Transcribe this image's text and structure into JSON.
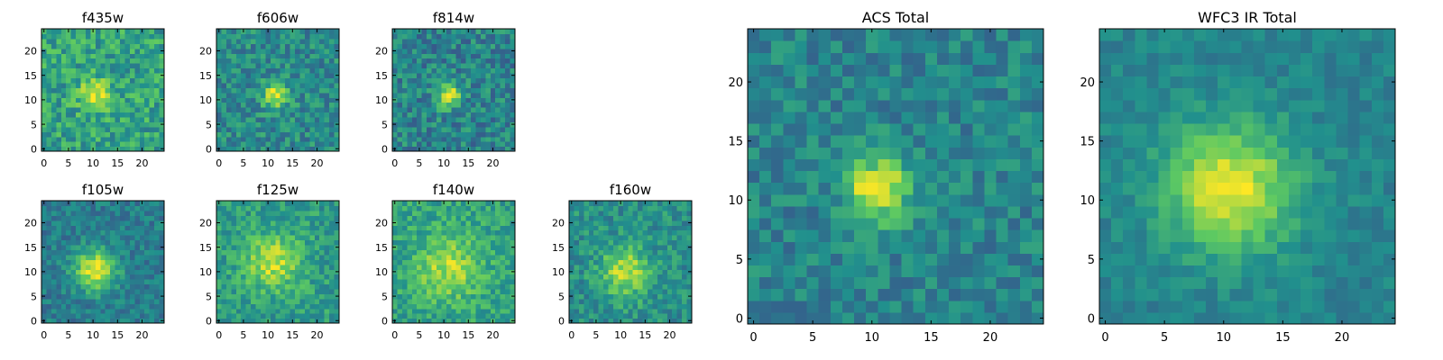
{
  "colormap": {
    "name": "viridis",
    "stops": [
      "#440154",
      "#3b528b",
      "#21908d",
      "#5dc962",
      "#fde725"
    ]
  },
  "chart_data": [
    {
      "type": "heatmap",
      "title": "f435w",
      "grid": false,
      "xlim": [
        0,
        24
      ],
      "ylim": [
        0,
        24
      ],
      "xticks": [
        "0",
        "5",
        "10",
        "15",
        "20"
      ],
      "yticks": [
        "0",
        "5",
        "10",
        "15",
        "20"
      ],
      "center": [
        10.5,
        11
      ],
      "sigma": 2.2,
      "base": 0.58,
      "amp": 0.38,
      "noise": 0.18,
      "seed": 11
    },
    {
      "type": "heatmap",
      "title": "f606w",
      "grid": false,
      "xlim": [
        0,
        24
      ],
      "ylim": [
        0,
        24
      ],
      "xticks": [
        "0",
        "5",
        "10",
        "15",
        "20"
      ],
      "yticks": [
        "0",
        "5",
        "10",
        "15",
        "20"
      ],
      "center": [
        11.5,
        11
      ],
      "sigma": 1.8,
      "base": 0.48,
      "amp": 0.5,
      "noise": 0.16,
      "seed": 23
    },
    {
      "type": "heatmap",
      "title": "f814w",
      "grid": false,
      "xlim": [
        0,
        24
      ],
      "ylim": [
        0,
        24
      ],
      "xticks": [
        "0",
        "5",
        "10",
        "15",
        "20"
      ],
      "yticks": [
        "0",
        "5",
        "10",
        "15",
        "20"
      ],
      "center": [
        11,
        11
      ],
      "sigma": 1.7,
      "base": 0.45,
      "amp": 0.52,
      "noise": 0.17,
      "seed": 37
    },
    {
      "type": "heatmap",
      "title": "f105w",
      "grid": false,
      "xlim": [
        0,
        24
      ],
      "ylim": [
        0,
        24
      ],
      "xticks": [
        "0",
        "5",
        "10",
        "15",
        "20"
      ],
      "yticks": [
        "0",
        "5",
        "10",
        "15",
        "20"
      ],
      "center": [
        10.5,
        10.5
      ],
      "sigma": 3.0,
      "base": 0.42,
      "amp": 0.55,
      "noise": 0.12,
      "seed": 41
    },
    {
      "type": "heatmap",
      "title": "f125w",
      "grid": false,
      "xlim": [
        0,
        24
      ],
      "ylim": [
        0,
        24
      ],
      "xticks": [
        "0",
        "5",
        "10",
        "15",
        "20"
      ],
      "yticks": [
        "0",
        "5",
        "10",
        "15",
        "20"
      ],
      "center": [
        11,
        12
      ],
      "sigma": 4.0,
      "base": 0.55,
      "amp": 0.35,
      "noise": 0.14,
      "seed": 53
    },
    {
      "type": "heatmap",
      "title": "f140w",
      "grid": false,
      "xlim": [
        0,
        24
      ],
      "ylim": [
        0,
        24
      ],
      "xticks": [
        "0",
        "5",
        "10",
        "15",
        "20"
      ],
      "yticks": [
        "0",
        "5",
        "10",
        "15",
        "20"
      ],
      "center": [
        11,
        11
      ],
      "sigma": 4.5,
      "base": 0.58,
      "amp": 0.3,
      "noise": 0.14,
      "seed": 67
    },
    {
      "type": "heatmap",
      "title": "f160w",
      "grid": false,
      "xlim": [
        0,
        24
      ],
      "ylim": [
        0,
        24
      ],
      "xticks": [
        "0",
        "5",
        "10",
        "15",
        "20"
      ],
      "yticks": [
        "0",
        "5",
        "10",
        "15",
        "20"
      ],
      "center": [
        11,
        10
      ],
      "sigma": 3.5,
      "base": 0.5,
      "amp": 0.4,
      "noise": 0.14,
      "seed": 79
    },
    {
      "type": "heatmap",
      "title": "ACS Total",
      "grid": false,
      "xlim": [
        0,
        24
      ],
      "ylim": [
        0,
        24
      ],
      "xticks": [
        "0",
        "5",
        "10",
        "15",
        "20"
      ],
      "yticks": [
        "0",
        "5",
        "10",
        "15",
        "20"
      ],
      "center": [
        10.5,
        11
      ],
      "sigma": 1.9,
      "base": 0.45,
      "amp": 0.55,
      "noise": 0.13,
      "seed": 97
    },
    {
      "type": "heatmap",
      "title": "WFC3 IR Total",
      "grid": false,
      "xlim": [
        0,
        24
      ],
      "ylim": [
        0,
        24
      ],
      "xticks": [
        "0",
        "5",
        "10",
        "15",
        "20"
      ],
      "yticks": [
        "0",
        "5",
        "10",
        "15",
        "20"
      ],
      "center": [
        10.5,
        11
      ],
      "sigma": 3.8,
      "base": 0.45,
      "amp": 0.52,
      "noise": 0.08,
      "seed": 131
    }
  ]
}
